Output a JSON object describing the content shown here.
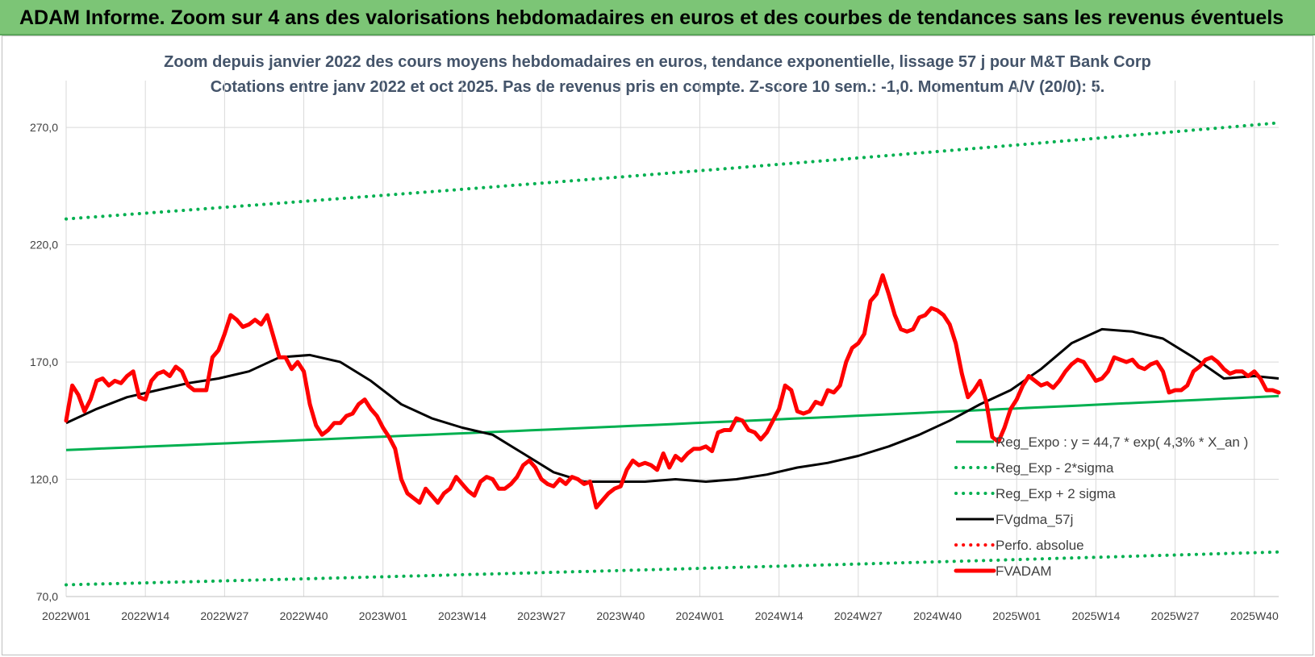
{
  "banner": {
    "title": "ADAM Informe. Zoom sur 4 ans des valorisations hebdomadaires en euros et des courbes de tendances sans les revenus éventuels",
    "color": "#7cc576"
  },
  "chart_data": {
    "type": "line",
    "title": "Zoom depuis janvier 2022 des cours moyens hebdomadaires en euros, tendance exponentielle, lissage 57 j pour M&T Bank Corp",
    "subtitle": "Cotations entre janv 2022 et oct 2025. Pas de revenus pris en compte. Z-score 10 sem.: -1,0.  Momentum A/V (20/0): 5.",
    "xlabel": "",
    "ylabel": "",
    "ylim": [
      70,
      290
    ],
    "yticks": [
      "70,0",
      "120,0",
      "170,0",
      "220,0",
      "270,0"
    ],
    "xticks": [
      "2022W01",
      "2022W14",
      "2022W27",
      "2022W40",
      "2023W01",
      "2023W14",
      "2023W27",
      "2023W40",
      "2024W01",
      "2024W14",
      "2024W27",
      "2024W40",
      "2025W01",
      "2025W14",
      "2025W27",
      "2025W40"
    ],
    "n_weeks": 200,
    "grid": "vertical and horizontal",
    "legend_position": "right",
    "legend": [
      {
        "name": "Reg_Expo : y = 44,7 * exp( 4,3% *  X_an )",
        "color": "#00b050",
        "style": "solid"
      },
      {
        "name": "Reg_Exp - 2*sigma",
        "color": "#00b050",
        "style": "dotted"
      },
      {
        "name": "Reg_Exp + 2 sigma",
        "color": "#00b050",
        "style": "dotted"
      },
      {
        "name": "FVgdma_57j",
        "color": "#000000",
        "style": "solid"
      },
      {
        "name": "Perfo. absolue",
        "color": "#ff0000",
        "style": "dotted"
      },
      {
        "name": "FVADAM",
        "color": "#ff0000",
        "style": "solid-thick"
      }
    ],
    "series": [
      {
        "name": "Reg_Expo : y = 44,7 * exp( 4,3% *  X_an )",
        "points": [
          [
            0,
            132.5
          ],
          [
            199,
            155.5
          ]
        ]
      },
      {
        "name": "Reg_Exp - 2*sigma",
        "points": [
          [
            0,
            75
          ],
          [
            199,
            89
          ]
        ]
      },
      {
        "name": "Reg_Exp + 2 sigma",
        "points": [
          [
            0,
            231
          ],
          [
            199,
            272
          ]
        ]
      },
      {
        "name": "FVgdma_57j",
        "points": [
          [
            0,
            144
          ],
          [
            5,
            150
          ],
          [
            10,
            155
          ],
          [
            15,
            158
          ],
          [
            20,
            161
          ],
          [
            25,
            163
          ],
          [
            30,
            166
          ],
          [
            35,
            172
          ],
          [
            40,
            173
          ],
          [
            45,
            170
          ],
          [
            50,
            162
          ],
          [
            55,
            152
          ],
          [
            60,
            146
          ],
          [
            65,
            142
          ],
          [
            70,
            139
          ],
          [
            75,
            131
          ],
          [
            80,
            123
          ],
          [
            85,
            119
          ],
          [
            90,
            119
          ],
          [
            95,
            119
          ],
          [
            100,
            120
          ],
          [
            105,
            119
          ],
          [
            110,
            120
          ],
          [
            115,
            122
          ],
          [
            120,
            125
          ],
          [
            125,
            127
          ],
          [
            130,
            130
          ],
          [
            135,
            134
          ],
          [
            140,
            139
          ],
          [
            145,
            145
          ],
          [
            150,
            152
          ],
          [
            155,
            158
          ],
          [
            160,
            167
          ],
          [
            165,
            178
          ],
          [
            170,
            184
          ],
          [
            175,
            183
          ],
          [
            180,
            180
          ],
          [
            185,
            172
          ],
          [
            190,
            163
          ],
          [
            195,
            164
          ],
          [
            199,
            163
          ]
        ]
      },
      {
        "name": "FVADAM",
        "points": [
          [
            0,
            145
          ],
          [
            1,
            160
          ],
          [
            2,
            156
          ],
          [
            3,
            149
          ],
          [
            4,
            154
          ],
          [
            5,
            162
          ],
          [
            6,
            163
          ],
          [
            7,
            160
          ],
          [
            8,
            162
          ],
          [
            9,
            161
          ],
          [
            10,
            164
          ],
          [
            11,
            166
          ],
          [
            12,
            155
          ],
          [
            13,
            154
          ],
          [
            14,
            162
          ],
          [
            15,
            165
          ],
          [
            16,
            166
          ],
          [
            17,
            164
          ],
          [
            18,
            168
          ],
          [
            19,
            166
          ],
          [
            20,
            160
          ],
          [
            21,
            158
          ],
          [
            22,
            158
          ],
          [
            23,
            158
          ],
          [
            24,
            172
          ],
          [
            25,
            175
          ],
          [
            26,
            182
          ],
          [
            27,
            190
          ],
          [
            28,
            188
          ],
          [
            29,
            185
          ],
          [
            30,
            186
          ],
          [
            31,
            188
          ],
          [
            32,
            186
          ],
          [
            33,
            190
          ],
          [
            34,
            181
          ],
          [
            35,
            172
          ],
          [
            36,
            172
          ],
          [
            37,
            167
          ],
          [
            38,
            170
          ],
          [
            39,
            166
          ],
          [
            40,
            152
          ],
          [
            41,
            143
          ],
          [
            42,
            139
          ],
          [
            43,
            141
          ],
          [
            44,
            144
          ],
          [
            45,
            144
          ],
          [
            46,
            147
          ],
          [
            47,
            148
          ],
          [
            48,
            152
          ],
          [
            49,
            154
          ],
          [
            50,
            150
          ],
          [
            51,
            147
          ],
          [
            52,
            142
          ],
          [
            53,
            138
          ],
          [
            54,
            133
          ],
          [
            55,
            120
          ],
          [
            56,
            114
          ],
          [
            57,
            112
          ],
          [
            58,
            110
          ],
          [
            59,
            116
          ],
          [
            60,
            113
          ],
          [
            61,
            110
          ],
          [
            62,
            114
          ],
          [
            63,
            116
          ],
          [
            64,
            121
          ],
          [
            65,
            118
          ],
          [
            66,
            115
          ],
          [
            67,
            113
          ],
          [
            68,
            119
          ],
          [
            69,
            121
          ],
          [
            70,
            120
          ],
          [
            71,
            116
          ],
          [
            72,
            116
          ],
          [
            73,
            118
          ],
          [
            74,
            121
          ],
          [
            75,
            126
          ],
          [
            76,
            128
          ],
          [
            77,
            125
          ],
          [
            78,
            120
          ],
          [
            79,
            118
          ],
          [
            80,
            117
          ],
          [
            81,
            120
          ],
          [
            82,
            118
          ],
          [
            83,
            121
          ],
          [
            84,
            120
          ],
          [
            85,
            118
          ],
          [
            86,
            119
          ],
          [
            87,
            108
          ],
          [
            88,
            111
          ],
          [
            89,
            114
          ],
          [
            90,
            116
          ],
          [
            91,
            117
          ],
          [
            92,
            124
          ],
          [
            93,
            128
          ],
          [
            94,
            126
          ],
          [
            95,
            127
          ],
          [
            96,
            126
          ],
          [
            97,
            124
          ],
          [
            98,
            131
          ],
          [
            99,
            125
          ],
          [
            100,
            130
          ],
          [
            101,
            128
          ],
          [
            102,
            131
          ],
          [
            103,
            133
          ],
          [
            104,
            133
          ],
          [
            105,
            134
          ],
          [
            106,
            132
          ],
          [
            107,
            140
          ],
          [
            108,
            141
          ],
          [
            109,
            141
          ],
          [
            110,
            146
          ],
          [
            111,
            145
          ],
          [
            112,
            141
          ],
          [
            113,
            140
          ],
          [
            114,
            137
          ],
          [
            115,
            140
          ],
          [
            116,
            145
          ],
          [
            117,
            150
          ],
          [
            118,
            160
          ],
          [
            119,
            158
          ],
          [
            120,
            149
          ],
          [
            121,
            148
          ],
          [
            122,
            149
          ],
          [
            123,
            153
          ],
          [
            124,
            152
          ],
          [
            125,
            158
          ],
          [
            126,
            157
          ],
          [
            127,
            160
          ],
          [
            128,
            170
          ],
          [
            129,
            176
          ],
          [
            130,
            178
          ],
          [
            131,
            182
          ],
          [
            132,
            196
          ],
          [
            133,
            199
          ],
          [
            134,
            207
          ],
          [
            135,
            199
          ],
          [
            136,
            190
          ],
          [
            137,
            184
          ],
          [
            138,
            183
          ],
          [
            139,
            184
          ],
          [
            140,
            189
          ],
          [
            141,
            190
          ],
          [
            142,
            193
          ],
          [
            143,
            192
          ],
          [
            144,
            190
          ],
          [
            145,
            186
          ],
          [
            146,
            178
          ],
          [
            147,
            165
          ],
          [
            148,
            155
          ],
          [
            149,
            158
          ],
          [
            150,
            162
          ],
          [
            151,
            153
          ],
          [
            152,
            138
          ],
          [
            153,
            136
          ],
          [
            154,
            142
          ],
          [
            155,
            150
          ],
          [
            156,
            154
          ],
          [
            157,
            160
          ],
          [
            158,
            164
          ],
          [
            159,
            162
          ],
          [
            160,
            160
          ],
          [
            161,
            161
          ],
          [
            162,
            159
          ],
          [
            163,
            162
          ],
          [
            164,
            166
          ],
          [
            165,
            169
          ],
          [
            166,
            171
          ],
          [
            167,
            170
          ],
          [
            168,
            166
          ],
          [
            169,
            162
          ],
          [
            170,
            163
          ],
          [
            171,
            166
          ],
          [
            172,
            172
          ],
          [
            173,
            171
          ],
          [
            174,
            170
          ],
          [
            175,
            171
          ],
          [
            176,
            168
          ],
          [
            177,
            167
          ],
          [
            178,
            169
          ],
          [
            179,
            170
          ],
          [
            180,
            166
          ],
          [
            181,
            157
          ],
          [
            182,
            158
          ],
          [
            183,
            158
          ],
          [
            184,
            160
          ],
          [
            185,
            166
          ],
          [
            186,
            168
          ],
          [
            187,
            171
          ],
          [
            188,
            172
          ],
          [
            189,
            170
          ],
          [
            190,
            167
          ],
          [
            191,
            165
          ],
          [
            192,
            166
          ],
          [
            193,
            166
          ],
          [
            194,
            164
          ],
          [
            195,
            166
          ],
          [
            196,
            163
          ],
          [
            197,
            158
          ],
          [
            198,
            158
          ],
          [
            199,
            157
          ]
        ]
      }
    ]
  }
}
